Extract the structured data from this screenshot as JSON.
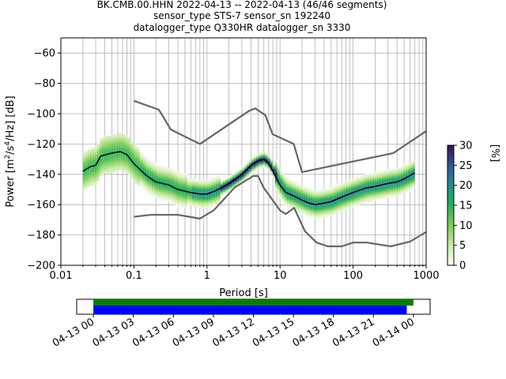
{
  "title_lines": [
    "BK.CMB.00.HHN   2022-04-13 -- 2022-04-13  (46/46 segments)",
    "sensor_type STS-7 sensor_sn 192240",
    "datalogger_type Q330HR datalogger_sn 3330"
  ],
  "chart_data": [
    {
      "type": "heatmap",
      "title": "",
      "xlabel": "Period [s]",
      "ylabel": "Power [m²/s⁴/Hz] [dB]",
      "xscale": "log",
      "xlim": [
        0.01,
        1000
      ],
      "ylim": [
        -200,
        -50
      ],
      "x_ticks": [
        0.01,
        0.1,
        1,
        10,
        100,
        1000
      ],
      "x_tick_labels": [
        "0.01",
        "0.1",
        "1",
        "10",
        "100",
        "1000"
      ],
      "y_ticks": [
        -200,
        -180,
        -160,
        -140,
        -120,
        -100,
        -80,
        -60
      ],
      "y_tick_labels": [
        "−200",
        "−180",
        "−160",
        "−140",
        "−120",
        "−100",
        "−80",
        "−60"
      ],
      "grid": true,
      "colorbar": {
        "label": "[%]",
        "range": [
          0,
          30
        ],
        "ticks": [
          0,
          5,
          10,
          15,
          20,
          25,
          30
        ],
        "tick_labels": [
          "0",
          "5",
          "10",
          "15",
          "20",
          "25",
          "30"
        ]
      },
      "series": [
        {
          "name": "",
          "role": "mode-curve",
          "color": "#000000",
          "x": [
            0.02,
            0.025,
            0.03,
            0.035,
            0.05,
            0.065,
            0.08,
            0.1,
            0.15,
            0.2,
            0.3,
            0.4,
            0.6,
            0.8,
            1.0,
            1.3,
            2.0,
            3.0,
            4.0,
            5.0,
            6.0,
            7.0,
            8.0,
            10.0,
            12.0,
            15.0,
            20.0,
            25.0,
            30.0,
            40.0,
            50.0,
            70.0,
            100.0,
            150.0,
            200.0,
            300.0,
            400.0,
            500.0,
            700.0
          ],
          "y": [
            -138,
            -135,
            -134,
            -128,
            -126,
            -125,
            -127,
            -133,
            -141,
            -145,
            -147,
            -150,
            -152,
            -153,
            -153,
            -151,
            -146,
            -140,
            -134,
            -131,
            -130,
            -133,
            -138,
            -147,
            -152,
            -154,
            -157,
            -159,
            -160,
            -159,
            -158,
            -155,
            -152,
            -149,
            -148,
            -146,
            -145,
            -143,
            -139
          ]
        },
        {
          "name": "",
          "role": "high-noise-model",
          "color": "#666666",
          "x": [
            0.1,
            0.22,
            0.32,
            0.8,
            3.8,
            4.6,
            6.3,
            7.9,
            15.4,
            20.0,
            354.8,
            1000
          ],
          "y": [
            -91.5,
            -97.4,
            -110.5,
            -120,
            -98,
            -96.5,
            -101,
            -113.5,
            -120,
            -138.5,
            -126,
            -111.5
          ]
        },
        {
          "name": "",
          "role": "low-noise-model",
          "color": "#666666",
          "x": [
            0.1,
            0.17,
            0.4,
            0.8,
            1.24,
            2.4,
            4.3,
            5.0,
            6.0,
            10.0,
            12.0,
            15.6,
            21.9,
            31.6,
            45.0,
            70.0,
            101.0,
            154.0,
            328.0,
            600.0,
            1000
          ],
          "y": [
            -168,
            -166.7,
            -166.7,
            -169.2,
            -163.7,
            -148.6,
            -141.1,
            -141.1,
            -149,
            -163.8,
            -166.2,
            -162.1,
            -177.5,
            -185,
            -187.5,
            -187.5,
            -185,
            -185,
            -187.5,
            -184.4,
            -178
          ]
        }
      ]
    },
    {
      "type": "bar",
      "title": "",
      "xlabel": "",
      "ylabel": "",
      "x_tick_labels": [
        "04-13 00",
        "04-13 03",
        "04-13 06",
        "04-13 09",
        "04-13 12",
        "04-13 15",
        "04-13 18",
        "04-13 21",
        "04-14 00"
      ],
      "xlim_hours": [
        -1.25,
        25.25
      ],
      "series": [
        {
          "name": "",
          "color": "#008000",
          "start_hour": 0,
          "end_hour": 24.0
        },
        {
          "name": "",
          "color": "#0000ff",
          "start_hour": 0,
          "end_hour": 23.5
        }
      ]
    }
  ]
}
